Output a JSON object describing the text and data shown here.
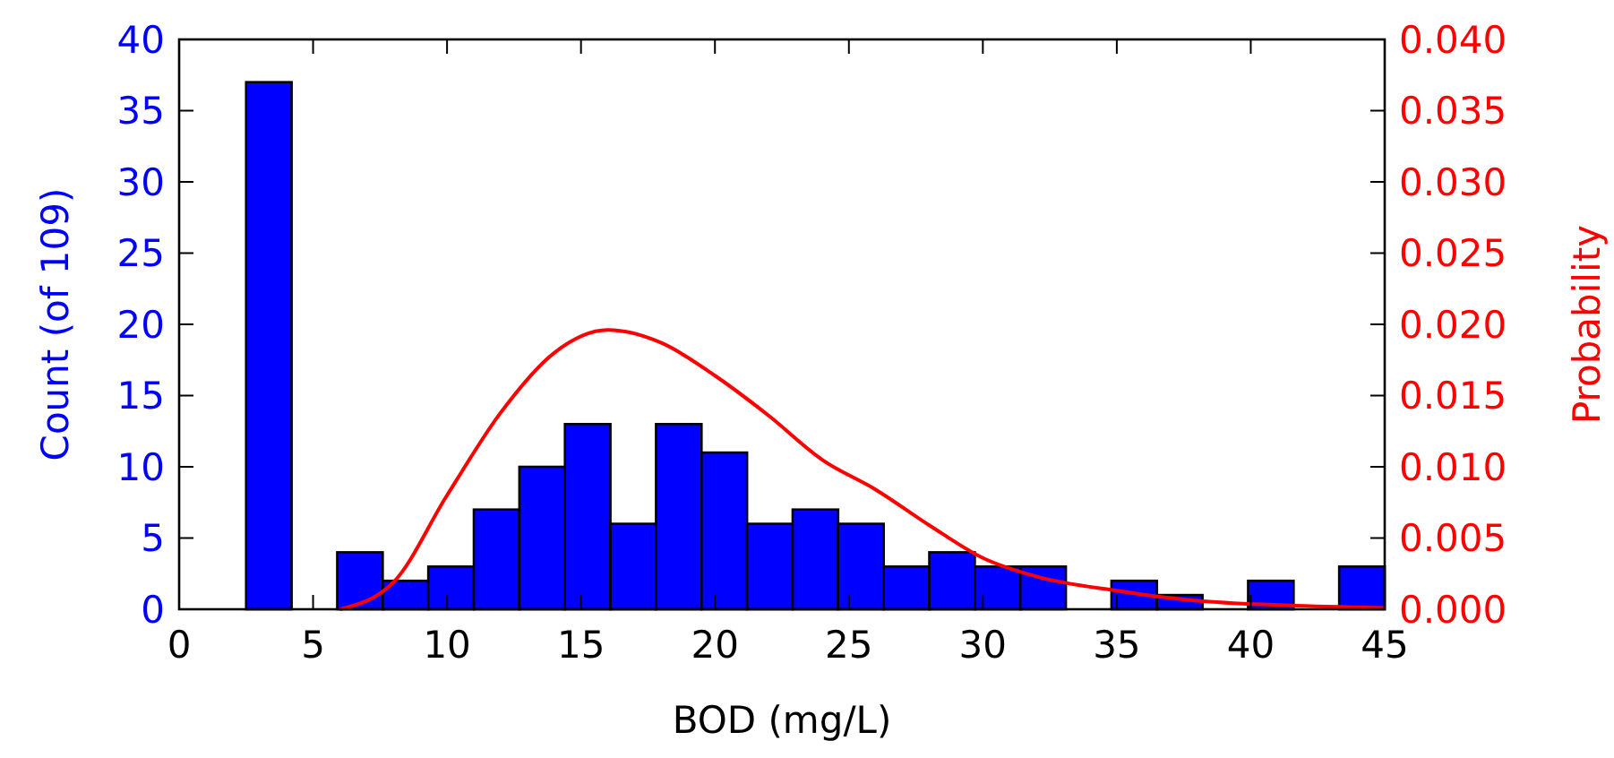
{
  "chart_data": {
    "type": "histogram",
    "xlabel": "BOD (mg/L)",
    "ylabel": "Count (of 109)",
    "y2label": "Probability",
    "bins": [
      2.5,
      4.2,
      5.9,
      7.6,
      9.3,
      11.0,
      12.7,
      14.4,
      16.1,
      17.8,
      19.5,
      21.2,
      22.9,
      24.6,
      26.3,
      28.0,
      29.7,
      31.4,
      33.1,
      34.8,
      36.5,
      38.2,
      39.9,
      41.6,
      43.3,
      45.0
    ],
    "series": [
      {
        "color": "#0000ff",
        "values": [
          37,
          0,
          4,
          2,
          3,
          7,
          10,
          13,
          6,
          13,
          11,
          6,
          7,
          6,
          3,
          4,
          3,
          3,
          0,
          2,
          1,
          0,
          2,
          0,
          3
        ]
      },
      {
        "type": "line",
        "axis": "y2",
        "color": "#ff0000",
        "x": [
          6,
          8,
          10,
          12,
          14,
          16,
          18,
          20,
          22,
          24,
          26,
          28,
          30,
          32,
          35,
          38,
          41,
          45
        ],
        "values": [
          0,
          0.0019,
          0.008,
          0.0138,
          0.018,
          0.0196,
          0.0187,
          0.0164,
          0.0136,
          0.0105,
          0.0084,
          0.0059,
          0.0036,
          0.0023,
          0.0013,
          0.0006,
          0.0003,
          0.0001
        ]
      }
    ],
    "xlim": [
      0,
      45
    ],
    "xticks": [
      0,
      5,
      10,
      15,
      20,
      25,
      30,
      35,
      40,
      45
    ],
    "ylim": [
      0,
      40
    ],
    "yticks": [
      0,
      5,
      10,
      15,
      20,
      25,
      30,
      35,
      40
    ],
    "y2lim": [
      0,
      0.04
    ],
    "y2ticks": [
      {
        "value": 0,
        "label": "0.000"
      },
      {
        "value": 0.005,
        "label": "0.005"
      },
      {
        "value": 0.01,
        "label": "0.010"
      },
      {
        "value": 0.015,
        "label": "0.015"
      },
      {
        "value": 0.02,
        "label": "0.020"
      },
      {
        "value": 0.025,
        "label": "0.025"
      },
      {
        "value": 0.03,
        "label": "0.030"
      },
      {
        "value": 0.035,
        "label": "0.035"
      },
      {
        "value": 0.04,
        "label": "0.040"
      }
    ],
    "grid": false
  }
}
